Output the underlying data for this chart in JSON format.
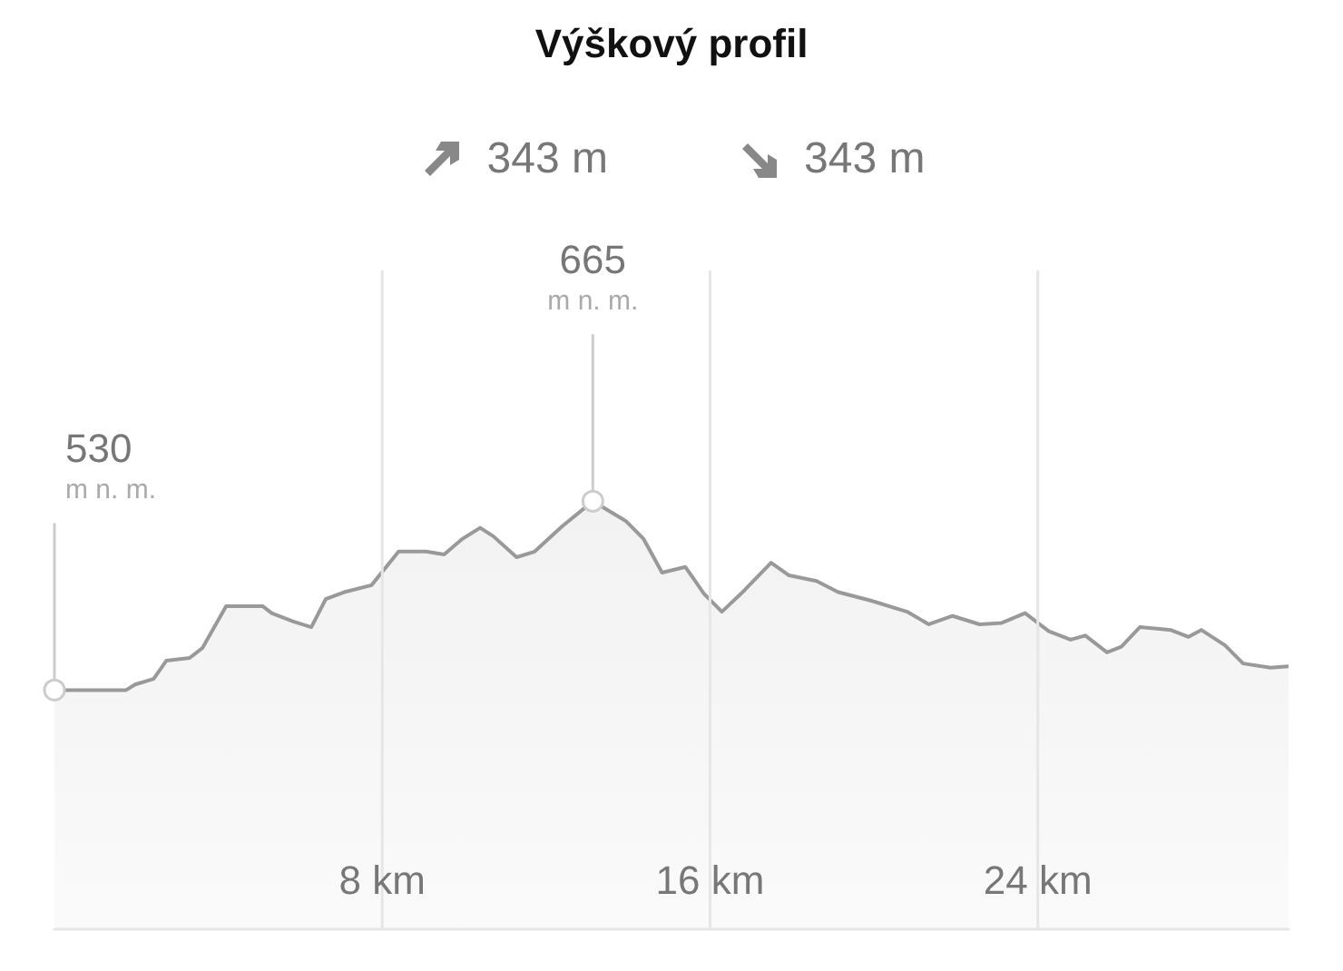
{
  "chart_data": {
    "type": "area",
    "title": "Výškový profil",
    "annotations": [
      "343 m",
      "343 m"
    ],
    "x": [
      0,
      1.75,
      1.97,
      2.42,
      2.73,
      3.3,
      3.61,
      4.19,
      5.08,
      5.3,
      5.83,
      6.27,
      6.62,
      7.07,
      7.74,
      8.4,
      9.07,
      9.51,
      9.95,
      10.39,
      10.71,
      11.28,
      11.72,
      12.39,
      13.14,
      13.94,
      14.38,
      14.83,
      15.4,
      15.85,
      16.29,
      16.83,
      17.49,
      17.93,
      18.6,
      19.13,
      19.92,
      20.81,
      21.34,
      21.92,
      22.58,
      23.12,
      23.69,
      24.27,
      24.8,
      25.16,
      25.69,
      26.04,
      26.49,
      27.24,
      27.68,
      27.99,
      28.57,
      29.01,
      29.68,
      30.12
    ],
    "series": [
      {
        "color": "#999999",
        "values": [
          530,
          530,
          534,
          538,
          551,
          553,
          560,
          590,
          590,
          585,
          579,
          575,
          595,
          600,
          605,
          629,
          629,
          627,
          638,
          646,
          640,
          625,
          629,
          647,
          665,
          651,
          638,
          614,
          618,
          599,
          586,
          601,
          621,
          612,
          608,
          600,
          594,
          586,
          577,
          583,
          577,
          578,
          585,
          572,
          566,
          569,
          557,
          561,
          575,
          573,
          568,
          573,
          562,
          549,
          546,
          547
        ],
        "value_labels": [
          "530\nm n. m.",
          null,
          null,
          null,
          null,
          null,
          null,
          null,
          null,
          null,
          null,
          null,
          null,
          null,
          null,
          null,
          null,
          null,
          null,
          null,
          null,
          null,
          null,
          null,
          "665\nm n. m.",
          null,
          null,
          null,
          null,
          null,
          null,
          null,
          null,
          null,
          null,
          null,
          null,
          null,
          null,
          null,
          null,
          null,
          null,
          null,
          null,
          null,
          null,
          null,
          null,
          null,
          null,
          null,
          null,
          null,
          null,
          null
        ]
      }
    ],
    "xlim": [
      0,
      30.12
    ],
    "ylim": [
      359,
      830
    ],
    "xticks": [
      {
        "value": 8,
        "label": "8 km"
      },
      {
        "value": 16,
        "label": "16 km"
      },
      {
        "value": 24,
        "label": "24 km"
      }
    ],
    "tick_labels": "x",
    "grid": "x"
  }
}
